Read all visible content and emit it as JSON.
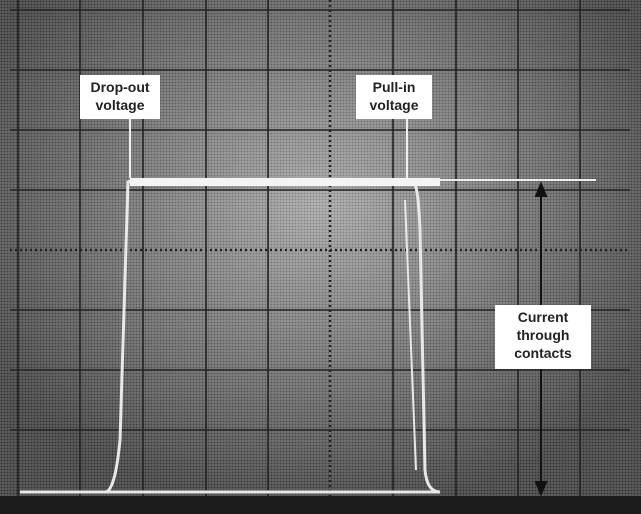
{
  "labels": [
    {
      "lines": [
        "Drop-out",
        "voltage"
      ]
    },
    {
      "lines": [
        "Pull-in",
        "voltage"
      ]
    },
    {
      "lines": [
        "Current",
        "through",
        "contacts"
      ]
    }
  ]
}
